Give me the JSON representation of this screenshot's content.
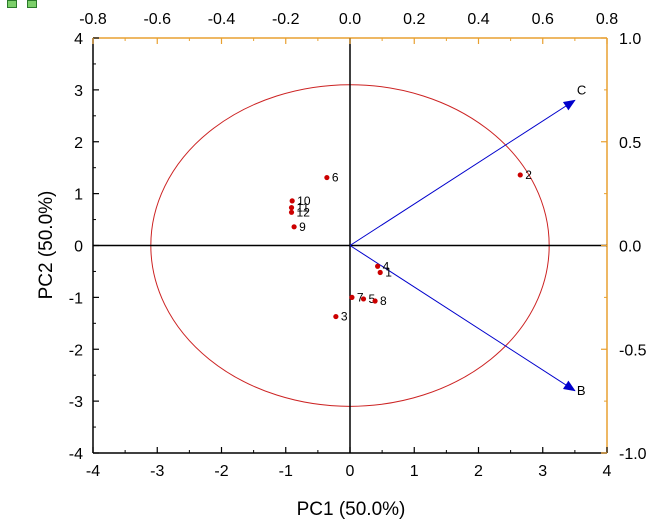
{
  "chart_data": {
    "type": "scatter",
    "subtype": "pca-biplot",
    "xlabel": "PC1 (50.0%)",
    "ylabel": "PC2 (50.0%)",
    "xlim": [
      -4,
      4
    ],
    "ylim": [
      -4,
      4
    ],
    "x_ticks": [
      "-4",
      "-3",
      "-2",
      "-1",
      "0",
      "1",
      "2",
      "3",
      "4"
    ],
    "y_ticks": [
      "-4",
      "-3",
      "-2",
      "-1",
      "0",
      "1",
      "2",
      "3",
      "4"
    ],
    "top_axis": {
      "range": [
        -0.8,
        0.8
      ],
      "ticks": [
        "-0.8",
        "-0.6",
        "-0.4",
        "-0.2",
        "0.0",
        "0.2",
        "0.4",
        "0.6",
        "0.8"
      ],
      "color": "#e8a030"
    },
    "right_axis": {
      "range": [
        -1.0,
        1.0
      ],
      "ticks": [
        "1.0",
        "0.5",
        "0.0",
        "-0.5",
        "-1.0"
      ],
      "color": "#e8a030"
    },
    "points": [
      {
        "label": "1",
        "x": 0.47,
        "y": -0.52
      },
      {
        "label": "2",
        "x": 2.65,
        "y": 1.36
      },
      {
        "label": "3",
        "x": -0.22,
        "y": -1.37
      },
      {
        "label": "4",
        "x": 0.43,
        "y": -0.4
      },
      {
        "label": "5",
        "x": 0.21,
        "y": -1.03
      },
      {
        "label": "6",
        "x": -0.36,
        "y": 1.31
      },
      {
        "label": "7",
        "x": 0.03,
        "y": -1.0
      },
      {
        "label": "8",
        "x": 0.39,
        "y": -1.07
      },
      {
        "label": "9",
        "x": -0.87,
        "y": 0.36
      },
      {
        "label": "10",
        "x": -0.9,
        "y": 0.86
      },
      {
        "label": "11",
        "x": -0.91,
        "y": 0.73
      },
      {
        "label": "12",
        "x": -0.91,
        "y": 0.64
      }
    ],
    "vectors": [
      {
        "label": "C",
        "x": 0.7,
        "y": 0.7
      },
      {
        "label": "B",
        "x": 0.7,
        "y": -0.7
      }
    ],
    "circle": {
      "radius_data_units": 3.1
    },
    "colors": {
      "points": "#cc0000",
      "vectors": "#0000cc",
      "circle": "#cc2222",
      "secondary_axes": "#e8a030",
      "axes": "#000000"
    }
  }
}
